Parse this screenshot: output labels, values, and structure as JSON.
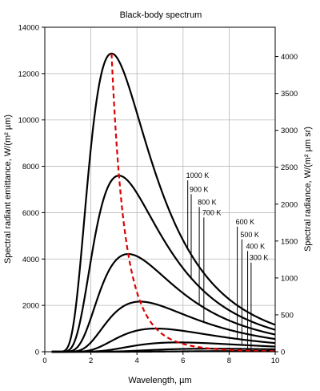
{
  "chart_data": {
    "type": "line",
    "title": "Black-body spectrum",
    "xlabel": "Wavelength, µm",
    "ylabel_left": "Spectral radiant emittance, W/(m² µm)",
    "ylabel_right": "Spectral radiance, W/(m² µm sr)",
    "xlim": [
      0,
      10
    ],
    "ylim_left": [
      0,
      14000
    ],
    "ylim_right": [
      0,
      4397
    ],
    "x_ticks": [
      0,
      2,
      4,
      6,
      8,
      10
    ],
    "y_ticks_left": [
      0,
      2000,
      4000,
      6000,
      8000,
      10000,
      12000,
      14000
    ],
    "y_ticks_right": [
      0,
      500,
      1000,
      1500,
      2000,
      2500,
      3000,
      3500,
      4000
    ],
    "grid": true,
    "series": [
      {
        "name": "1000 K",
        "temperature": 1000,
        "label_x": 6.1,
        "label_y": 7500
      },
      {
        "name": "900 K",
        "temperature": 900,
        "label_x": 6.25,
        "label_y": 6900
      },
      {
        "name": "800 K",
        "temperature": 800,
        "label_x": 6.6,
        "label_y": 6350
      },
      {
        "name": "700 K",
        "temperature": 700,
        "label_x": 6.8,
        "label_y": 5900
      },
      {
        "name": "600 K",
        "temperature": 600,
        "label_x": 8.25,
        "label_y": 5500
      },
      {
        "name": "500 K",
        "temperature": 500,
        "label_x": 8.45,
        "label_y": 4950
      },
      {
        "name": "400 K",
        "temperature": 400,
        "label_x": 8.7,
        "label_y": 4450
      },
      {
        "name": "300 K",
        "temperature": 300,
        "label_x": 8.85,
        "label_y": 3950
      }
    ],
    "wien_peak_line": {
      "style": "dashed",
      "color": "#dd0000"
    },
    "curve_color": "#000000"
  }
}
